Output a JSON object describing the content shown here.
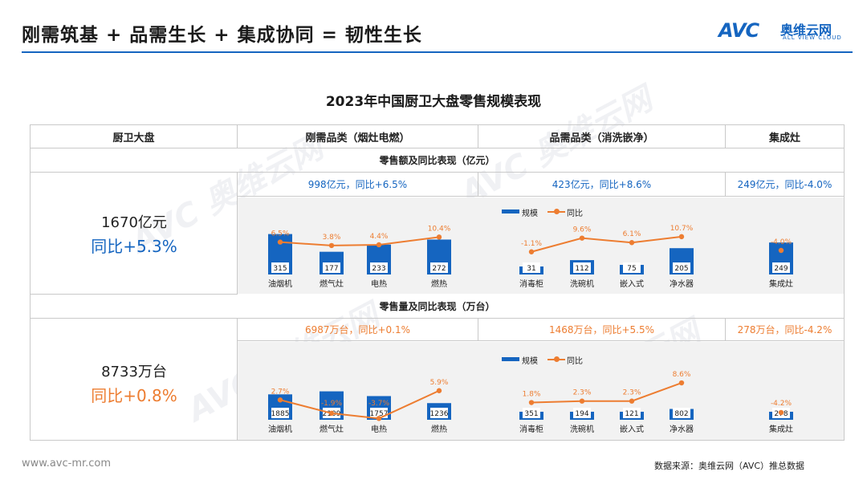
{
  "header": {
    "title": "刚需筑基 + 品需生长 + 集成协同 = 韧性生长",
    "brand_logo": "AVC",
    "brand_name": "奥维云网",
    "brand_sub": "ALL VIEW CLOUD"
  },
  "chart_title": "2023年中国厨卫大盘零售规模表现",
  "table": {
    "col_headers": [
      "厨卫大盘",
      "刚需品类（烟灶电燃）",
      "品需品类（消洗嵌净）",
      "集成灶"
    ],
    "sections": [
      {
        "label": "零售额及同比表现（亿元）",
        "total_value": "1670亿元",
        "total_yoy": "同比+5.3%",
        "summaries": [
          "998亿元，同比+6.5%",
          "423亿元，同比+8.6%",
          "249亿元，同比-4.0%"
        ]
      },
      {
        "label": "零售量及同比表现（万台）",
        "total_value": "8733万台",
        "total_yoy": "同比+0.8%",
        "summaries": [
          "6987万台，同比+0.1%",
          "1468万台，同比+5.5%",
          "278万台，同比-4.2%"
        ]
      }
    ]
  },
  "legend": {
    "bar": "规模",
    "line": "同比"
  },
  "colors": {
    "bar": "#1565c0",
    "line": "#ed7d31",
    "accent_blue": "#1565c0",
    "accent_orange": "#ed7d31"
  },
  "chart_data": [
    {
      "type": "bar",
      "title": "刚需品类零售额（亿元）",
      "categories": [
        "油烟机",
        "燃气灶",
        "电热",
        "燃热"
      ],
      "series": [
        {
          "name": "规模",
          "values": [
            315,
            177,
            233,
            272
          ]
        },
        {
          "name": "同比",
          "values": [
            6.5,
            3.8,
            4.4,
            10.4
          ],
          "labels": [
            "6.5%",
            "3.8%",
            "4.4%",
            "10.4%"
          ]
        }
      ]
    },
    {
      "type": "bar",
      "title": "品需品类零售额（亿元）",
      "categories": [
        "消毒柜",
        "洗碗机",
        "嵌入式",
        "净水器"
      ],
      "series": [
        {
          "name": "规模",
          "values": [
            31,
            112,
            75,
            205
          ]
        },
        {
          "name": "同比",
          "values": [
            -1.1,
            9.6,
            6.1,
            10.7
          ],
          "labels": [
            "-1.1%",
            "9.6%",
            "6.1%",
            "10.7%"
          ]
        }
      ]
    },
    {
      "type": "bar",
      "title": "集成灶零售额（亿元）",
      "categories": [
        "集成灶"
      ],
      "series": [
        {
          "name": "规模",
          "values": [
            249
          ]
        },
        {
          "name": "同比",
          "values": [
            -4.0
          ],
          "labels": [
            "-4.0%"
          ]
        }
      ]
    },
    {
      "type": "bar",
      "title": "刚需品类零售量（万台）",
      "categories": [
        "油烟机",
        "燃气灶",
        "电热",
        "燃热"
      ],
      "series": [
        {
          "name": "规模",
          "values": [
            1885,
            2109,
            1757,
            1236
          ]
        },
        {
          "name": "同比",
          "values": [
            2.7,
            -1.9,
            -3.7,
            5.9
          ],
          "labels": [
            "2.7%",
            "-1.9%",
            "-3.7%",
            "5.9%"
          ]
        }
      ]
    },
    {
      "type": "bar",
      "title": "品需品类零售量（万台）",
      "categories": [
        "消毒柜",
        "洗碗机",
        "嵌入式",
        "净水器"
      ],
      "series": [
        {
          "name": "规模",
          "values": [
            351,
            194,
            121,
            802
          ]
        },
        {
          "name": "同比",
          "values": [
            1.8,
            2.3,
            2.3,
            8.6
          ],
          "labels": [
            "1.8%",
            "2.3%",
            "2.3%",
            "8.6%"
          ]
        }
      ]
    },
    {
      "type": "bar",
      "title": "集成灶零售量（万台）",
      "categories": [
        "集成灶"
      ],
      "series": [
        {
          "name": "规模",
          "values": [
            278
          ]
        },
        {
          "name": "同比",
          "values": [
            -4.2
          ],
          "labels": [
            "-4.2%"
          ]
        }
      ]
    }
  ],
  "footer": {
    "url": "www.avc-mr.com",
    "source": "数据来源：奥维云网（AVC）推总数据"
  }
}
